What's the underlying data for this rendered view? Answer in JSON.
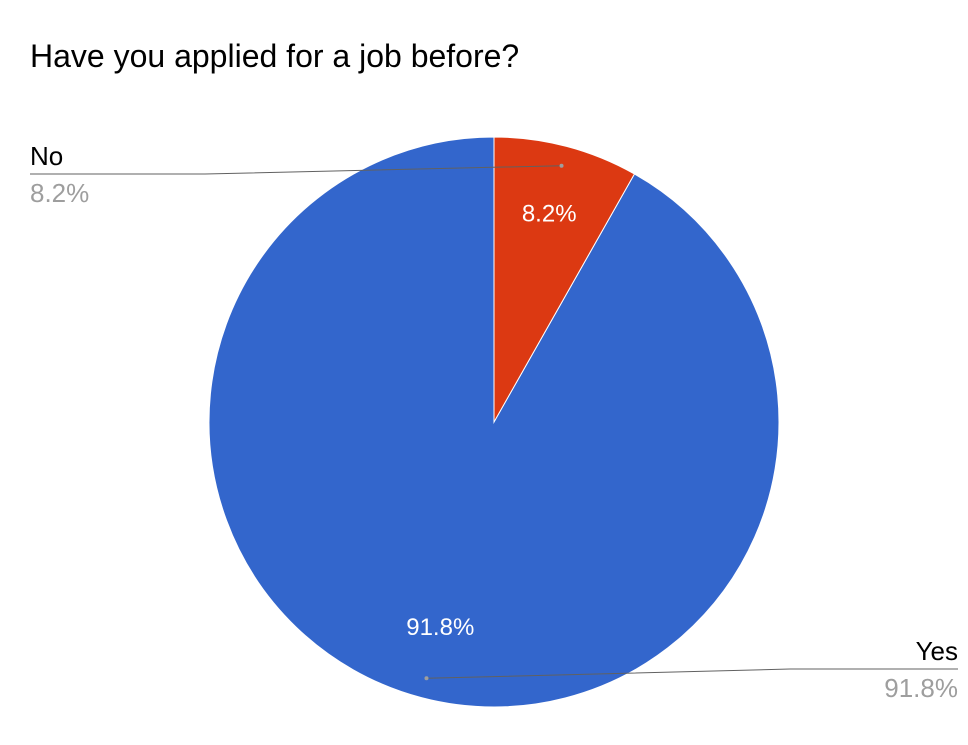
{
  "chart_data": {
    "type": "pie",
    "title": "Have you applied for a job before?",
    "slices": [
      {
        "label": "Yes",
        "value": 91.8,
        "percent_label": "91.8%",
        "color": "#3366cc"
      },
      {
        "label": "No",
        "value": 8.2,
        "percent_label": "8.2%",
        "color": "#dc3912"
      }
    ],
    "legend": "external-labels",
    "start_angle": "top",
    "direction": "counterclockwise"
  }
}
